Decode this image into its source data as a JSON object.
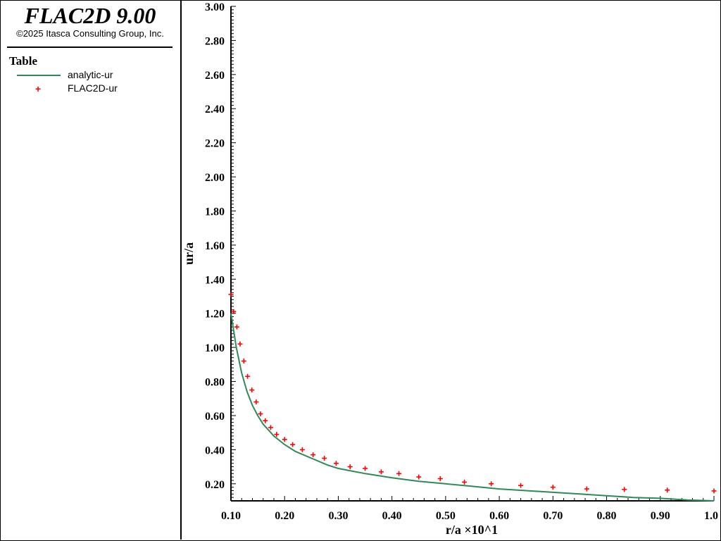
{
  "app": {
    "title": "FLAC2D 9.00",
    "copyright": "©2025 Itasca Consulting Group, Inc."
  },
  "legend": {
    "title": "Table",
    "items": [
      {
        "label": "analytic-ur",
        "marker": "line",
        "color": "#2e8b57"
      },
      {
        "label": "FLAC2D-ur",
        "marker": "plus",
        "color": "#ff0000"
      }
    ]
  },
  "chart_data": {
    "type": "line",
    "xlabel": "r/a ×10^1",
    "ylabel": "ur/a",
    "xlim": [
      0.1,
      1.0
    ],
    "ylim": [
      0.1,
      3.0
    ],
    "x_ticks": [
      "0.10",
      "0.20",
      "0.30",
      "0.40",
      "0.50",
      "0.60",
      "0.70",
      "0.80",
      "0.90",
      "1.0"
    ],
    "y_ticks": [
      "0.20",
      "0.40",
      "0.60",
      "0.80",
      "1.00",
      "1.20",
      "1.40",
      "1.60",
      "1.80",
      "2.00",
      "2.20",
      "2.40",
      "2.60",
      "2.80",
      "3.00"
    ],
    "grid": false,
    "legend_position": "left-panel",
    "series": [
      {
        "name": "analytic-ur",
        "style": "line",
        "color": "#2e8b57",
        "x": [
          0.1,
          0.11,
          0.12,
          0.13,
          0.14,
          0.15,
          0.16,
          0.18,
          0.2,
          0.22,
          0.25,
          0.28,
          0.3,
          0.35,
          0.4,
          0.45,
          0.5,
          0.55,
          0.6,
          0.65,
          0.7,
          0.75,
          0.8,
          0.85,
          0.9,
          0.95,
          1.0
        ],
        "y": [
          1.2,
          1.0,
          0.85,
          0.74,
          0.66,
          0.6,
          0.55,
          0.48,
          0.43,
          0.39,
          0.35,
          0.31,
          0.29,
          0.26,
          0.235,
          0.215,
          0.2,
          0.185,
          0.17,
          0.16,
          0.15,
          0.14,
          0.13,
          0.12,
          0.115,
          0.105,
          0.1
        ]
      },
      {
        "name": "FLAC2D-ur",
        "style": "plus",
        "color": "#ff0000",
        "x": [
          0.1,
          0.105,
          0.111,
          0.117,
          0.124,
          0.131,
          0.139,
          0.147,
          0.155,
          0.164,
          0.174,
          0.185,
          0.2,
          0.215,
          0.233,
          0.253,
          0.274,
          0.296,
          0.322,
          0.35,
          0.38,
          0.413,
          0.45,
          0.49,
          0.535,
          0.585,
          0.64,
          0.7,
          0.763,
          0.833,
          0.913,
          1.0
        ],
        "y": [
          1.31,
          1.21,
          1.12,
          1.02,
          0.92,
          0.83,
          0.75,
          0.68,
          0.61,
          0.57,
          0.53,
          0.49,
          0.46,
          0.43,
          0.4,
          0.37,
          0.35,
          0.32,
          0.3,
          0.29,
          0.27,
          0.26,
          0.24,
          0.23,
          0.21,
          0.2,
          0.19,
          0.18,
          0.17,
          0.167,
          0.163,
          0.158
        ]
      }
    ]
  }
}
